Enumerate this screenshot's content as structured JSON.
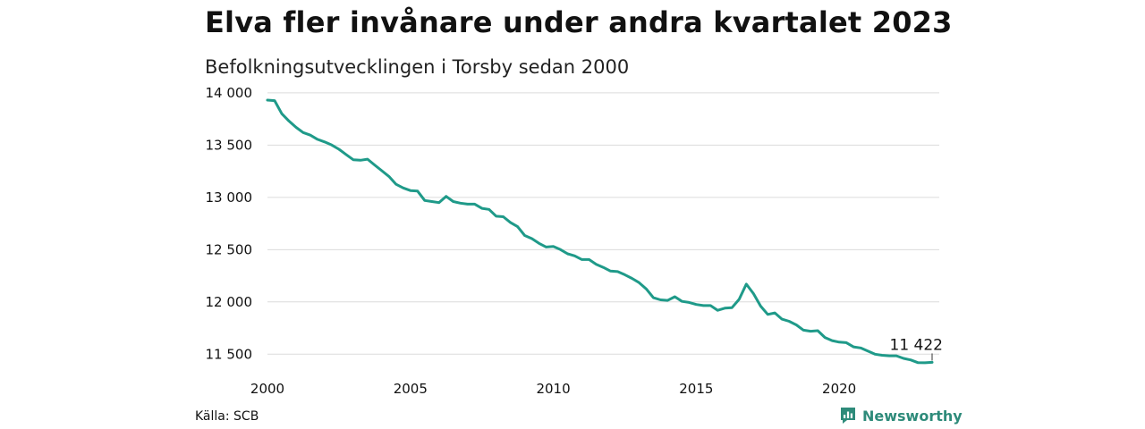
{
  "header": {
    "title": "Elva fler invånare under andra kvartalet 2023",
    "subtitle": "Befolkningsutvecklingen i Torsby sedan 2000"
  },
  "footer": {
    "source": "Källa: SCB",
    "brand": "Newsworthy"
  },
  "colors": {
    "line": "#1f9a89",
    "grid": "#dcdcdc",
    "brand": "#2e8b7a"
  },
  "chart_data": {
    "type": "line",
    "title": "Elva fler invånare under andra kvartalet 2023",
    "subtitle": "Befolkningsutvecklingen i Torsby sedan 2000",
    "xlabel": "",
    "ylabel": "",
    "xlim": [
      2000,
      2023.5
    ],
    "ylim": [
      11400,
      14050
    ],
    "x_ticks": [
      2000,
      2005,
      2010,
      2015,
      2020
    ],
    "x_tick_labels": [
      "2000",
      "2005",
      "2010",
      "2015",
      "2020"
    ],
    "y_ticks": [
      11500,
      12000,
      12500,
      13000,
      13500,
      14000
    ],
    "y_tick_labels": [
      "11 500",
      "12 000",
      "12 500",
      "13 000",
      "13 500",
      "14 000"
    ],
    "grid": "horizontal",
    "annotation": {
      "x": 2023.25,
      "y": 11422,
      "label": "11 422"
    },
    "x": [
      2000.0,
      2000.25,
      2000.5,
      2000.75,
      2001.0,
      2001.25,
      2001.5,
      2001.75,
      2002.0,
      2002.25,
      2002.5,
      2002.75,
      2003.0,
      2003.25,
      2003.5,
      2003.75,
      2004.0,
      2004.25,
      2004.5,
      2004.75,
      2005.0,
      2005.25,
      2005.5,
      2005.75,
      2006.0,
      2006.25,
      2006.5,
      2006.75,
      2007.0,
      2007.25,
      2007.5,
      2007.75,
      2008.0,
      2008.25,
      2008.5,
      2008.75,
      2009.0,
      2009.25,
      2009.5,
      2009.75,
      2010.0,
      2010.25,
      2010.5,
      2010.75,
      2011.0,
      2011.25,
      2011.5,
      2011.75,
      2012.0,
      2012.25,
      2012.5,
      2012.75,
      2013.0,
      2013.25,
      2013.5,
      2013.75,
      2014.0,
      2014.25,
      2014.5,
      2014.75,
      2015.0,
      2015.25,
      2015.5,
      2015.75,
      2016.0,
      2016.25,
      2016.5,
      2016.75,
      2017.0,
      2017.25,
      2017.5,
      2017.75,
      2018.0,
      2018.25,
      2018.5,
      2018.75,
      2019.0,
      2019.25,
      2019.5,
      2019.75,
      2020.0,
      2020.25,
      2020.5,
      2020.75,
      2021.0,
      2021.25,
      2021.5,
      2021.75,
      2022.0,
      2022.25,
      2022.5,
      2022.75,
      2023.0,
      2023.25
    ],
    "series": [
      {
        "values": [
          13930,
          13925,
          13800,
          13730,
          13670,
          13620,
          13595,
          13555,
          13530,
          13500,
          13460,
          13410,
          13360,
          13355,
          13365,
          13310,
          13255,
          13200,
          13125,
          13090,
          13065,
          13060,
          12970,
          12960,
          12950,
          13010,
          12960,
          12945,
          12935,
          12935,
          12895,
          12885,
          12820,
          12815,
          12760,
          12720,
          12635,
          12605,
          12560,
          12525,
          12530,
          12500,
          12460,
          12440,
          12405,
          12405,
          12360,
          12330,
          12295,
          12290,
          12260,
          12225,
          12185,
          12125,
          12040,
          12020,
          12015,
          12050,
          12005,
          11995,
          11975,
          11965,
          11965,
          11920,
          11940,
          11945,
          12025,
          12170,
          12080,
          11960,
          11880,
          11895,
          11835,
          11815,
          11780,
          11730,
          11720,
          11725,
          11660,
          11630,
          11615,
          11610,
          11570,
          11560,
          11530,
          11500,
          11490,
          11485,
          11485,
          11460,
          11445,
          11420,
          11418,
          11422
        ]
      }
    ]
  }
}
